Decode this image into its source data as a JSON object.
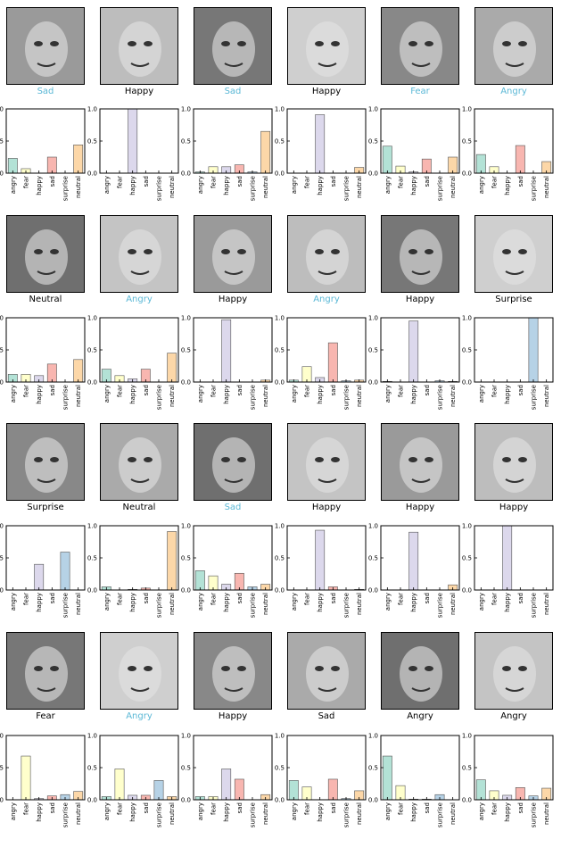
{
  "categories": [
    "angry",
    "fear",
    "happy",
    "sad",
    "surprise",
    "neutral"
  ],
  "bar_colors": [
    "#b3e2d6",
    "#ffffcc",
    "#dcd8ec",
    "#f8b6b0",
    "#b6d2e6",
    "#fcd7a8"
  ],
  "label_colors": {
    "correct": "#000000",
    "wrong": "#5bb8d6"
  },
  "yticks": [
    "0.0",
    "0.5",
    "1.0"
  ],
  "rows": [
    [
      {
        "label": "Sad",
        "wrong": true,
        "values": [
          0.23,
          0.07,
          0.0,
          0.25,
          0.0,
          0.44
        ]
      },
      {
        "label": "Happy",
        "wrong": false,
        "values": [
          0.0,
          0.0,
          1.0,
          0.0,
          0.0,
          0.0
        ]
      },
      {
        "label": "Sad",
        "wrong": true,
        "values": [
          0.02,
          0.1,
          0.1,
          0.13,
          0.02,
          0.65
        ]
      },
      {
        "label": "Happy",
        "wrong": false,
        "values": [
          0.0,
          0.0,
          0.91,
          0.0,
          0.0,
          0.09
        ]
      },
      {
        "label": "Fear",
        "wrong": true,
        "values": [
          0.42,
          0.11,
          0.02,
          0.22,
          0.0,
          0.25
        ]
      },
      {
        "label": "Angry",
        "wrong": true,
        "values": [
          0.29,
          0.1,
          0.0,
          0.43,
          0.0,
          0.18
        ]
      }
    ],
    [
      {
        "label": "Neutral",
        "wrong": false,
        "values": [
          0.12,
          0.12,
          0.1,
          0.28,
          0.0,
          0.35
        ]
      },
      {
        "label": "Angry",
        "wrong": true,
        "values": [
          0.2,
          0.1,
          0.05,
          0.2,
          0.0,
          0.45
        ]
      },
      {
        "label": "Happy",
        "wrong": false,
        "values": [
          0.0,
          0.0,
          0.97,
          0.0,
          0.0,
          0.03
        ]
      },
      {
        "label": "Angry",
        "wrong": true,
        "values": [
          0.03,
          0.24,
          0.07,
          0.61,
          0.02,
          0.03
        ]
      },
      {
        "label": "Happy",
        "wrong": false,
        "values": [
          0.01,
          0.0,
          0.95,
          0.0,
          0.02,
          0.01
        ]
      },
      {
        "label": "Surprise",
        "wrong": false,
        "values": [
          0.0,
          0.0,
          0.0,
          0.0,
          1.0,
          0.0
        ]
      }
    ],
    [
      {
        "label": "Surprise",
        "wrong": false,
        "values": [
          0.0,
          0.0,
          0.4,
          0.0,
          0.59,
          0.0
        ]
      },
      {
        "label": "Neutral",
        "wrong": false,
        "values": [
          0.05,
          0.0,
          0.01,
          0.03,
          0.0,
          0.91
        ]
      },
      {
        "label": "Sad",
        "wrong": true,
        "values": [
          0.3,
          0.22,
          0.09,
          0.26,
          0.05,
          0.09
        ]
      },
      {
        "label": "Happy",
        "wrong": false,
        "values": [
          0.0,
          0.0,
          0.93,
          0.05,
          0.0,
          0.01
        ]
      },
      {
        "label": "Happy",
        "wrong": false,
        "values": [
          0.0,
          0.0,
          0.9,
          0.0,
          0.0,
          0.08
        ]
      },
      {
        "label": "Happy",
        "wrong": false,
        "values": [
          0.0,
          0.0,
          1.0,
          0.0,
          0.0,
          0.0
        ]
      }
    ],
    [
      {
        "label": "Fear",
        "wrong": false,
        "values": [
          0.0,
          0.68,
          0.02,
          0.06,
          0.08,
          0.13
        ]
      },
      {
        "label": "Angry",
        "wrong": true,
        "values": [
          0.05,
          0.48,
          0.07,
          0.07,
          0.3,
          0.05
        ]
      },
      {
        "label": "Happy",
        "wrong": false,
        "values": [
          0.05,
          0.05,
          0.48,
          0.32,
          0.0,
          0.08
        ]
      },
      {
        "label": "Sad",
        "wrong": false,
        "values": [
          0.3,
          0.2,
          0.0,
          0.32,
          0.02,
          0.14
        ]
      },
      {
        "label": "Angry",
        "wrong": false,
        "values": [
          0.68,
          0.22,
          0.01,
          0.01,
          0.08,
          0.0
        ]
      },
      {
        "label": "Angry",
        "wrong": false,
        "values": [
          0.31,
          0.14,
          0.07,
          0.19,
          0.06,
          0.18
        ]
      }
    ]
  ],
  "chart_data": {
    "type": "bar",
    "categories": [
      "angry",
      "fear",
      "happy",
      "sad",
      "surprise",
      "neutral"
    ],
    "ylim": [
      0,
      1.0
    ],
    "grid": false,
    "charts": [
      {
        "title": "Sad",
        "values": [
          0.23,
          0.07,
          0.0,
          0.25,
          0.0,
          0.44
        ]
      },
      {
        "title": "Happy",
        "values": [
          0.0,
          0.0,
          1.0,
          0.0,
          0.0,
          0.0
        ]
      },
      {
        "title": "Sad",
        "values": [
          0.02,
          0.1,
          0.1,
          0.13,
          0.02,
          0.65
        ]
      },
      {
        "title": "Happy",
        "values": [
          0.0,
          0.0,
          0.91,
          0.0,
          0.0,
          0.09
        ]
      },
      {
        "title": "Fear",
        "values": [
          0.42,
          0.11,
          0.02,
          0.22,
          0.0,
          0.25
        ]
      },
      {
        "title": "Angry",
        "values": [
          0.29,
          0.1,
          0.0,
          0.43,
          0.0,
          0.18
        ]
      },
      {
        "title": "Neutral",
        "values": [
          0.12,
          0.12,
          0.1,
          0.28,
          0.0,
          0.35
        ]
      },
      {
        "title": "Angry",
        "values": [
          0.2,
          0.1,
          0.05,
          0.2,
          0.0,
          0.45
        ]
      },
      {
        "title": "Happy",
        "values": [
          0.0,
          0.0,
          0.97,
          0.0,
          0.0,
          0.03
        ]
      },
      {
        "title": "Angry",
        "values": [
          0.03,
          0.24,
          0.07,
          0.61,
          0.02,
          0.03
        ]
      },
      {
        "title": "Happy",
        "values": [
          0.01,
          0.0,
          0.95,
          0.0,
          0.02,
          0.01
        ]
      },
      {
        "title": "Surprise",
        "values": [
          0.0,
          0.0,
          0.0,
          0.0,
          1.0,
          0.0
        ]
      },
      {
        "title": "Surprise",
        "values": [
          0.0,
          0.0,
          0.4,
          0.0,
          0.59,
          0.0
        ]
      },
      {
        "title": "Neutral",
        "values": [
          0.05,
          0.0,
          0.01,
          0.03,
          0.0,
          0.91
        ]
      },
      {
        "title": "Sad",
        "values": [
          0.3,
          0.22,
          0.09,
          0.26,
          0.05,
          0.09
        ]
      },
      {
        "title": "Happy",
        "values": [
          0.0,
          0.0,
          0.93,
          0.05,
          0.0,
          0.01
        ]
      },
      {
        "title": "Happy",
        "values": [
          0.0,
          0.0,
          0.9,
          0.0,
          0.0,
          0.08
        ]
      },
      {
        "title": "Happy",
        "values": [
          0.0,
          0.0,
          1.0,
          0.0,
          0.0,
          0.0
        ]
      },
      {
        "title": "Fear",
        "values": [
          0.0,
          0.68,
          0.02,
          0.06,
          0.08,
          0.13
        ]
      },
      {
        "title": "Angry",
        "values": [
          0.05,
          0.48,
          0.07,
          0.07,
          0.3,
          0.05
        ]
      },
      {
        "title": "Happy",
        "values": [
          0.05,
          0.05,
          0.48,
          0.32,
          0.0,
          0.08
        ]
      },
      {
        "title": "Sad",
        "values": [
          0.3,
          0.2,
          0.0,
          0.32,
          0.02,
          0.14
        ]
      },
      {
        "title": "Angry",
        "values": [
          0.68,
          0.22,
          0.01,
          0.01,
          0.08,
          0.0
        ]
      },
      {
        "title": "Angry",
        "values": [
          0.31,
          0.14,
          0.07,
          0.19,
          0.06,
          0.18
        ]
      }
    ]
  }
}
